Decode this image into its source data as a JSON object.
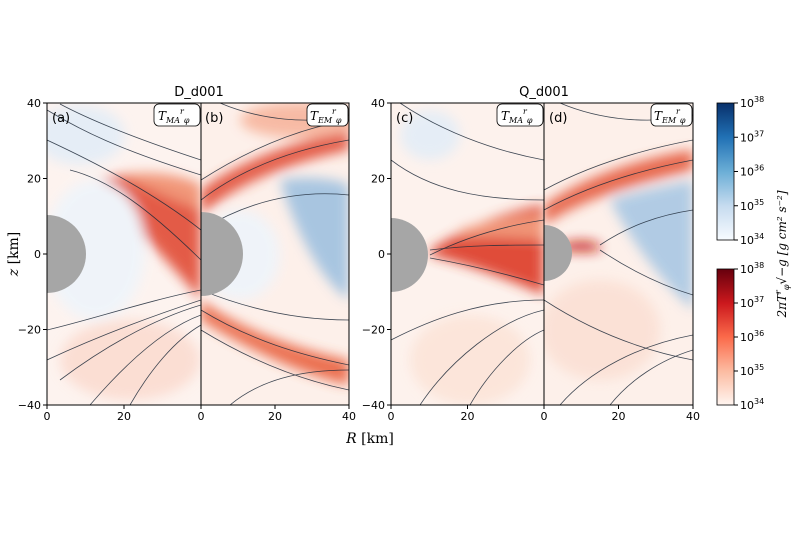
{
  "figure": {
    "titles": [
      "D_d001",
      "Q_d001"
    ],
    "xlabel": "R [km]",
    "ylabel": "z [km]",
    "colorbar_label": "2πT^r_φ√(−g) [g cm² s⁻²]",
    "colorbar_blue_ticks": [
      "10^38",
      "10^37",
      "10^36",
      "10^35",
      "10^34"
    ],
    "colorbar_red_ticks": [
      "10^38",
      "10^37",
      "10^36",
      "10^35",
      "10^34"
    ],
    "colors": {
      "positive": "#d6301f",
      "negative": "#2f6fab",
      "neutron_star": "#a6a6a6",
      "streamline": "#1f2b3a"
    }
  },
  "chart_data": [
    {
      "type": "heatmap",
      "panel": "(a)",
      "component": "T_MA^r_φ",
      "group": "D_d001",
      "x_ticks": [
        "0",
        "20"
      ],
      "y_ticks": [
        "40",
        "20",
        "0",
        "−20",
        "−40"
      ],
      "xlim": [
        0,
        40
      ],
      "ylim": [
        -40,
        40
      ],
      "color_scale": "log",
      "clim": [
        1e+34,
        1e+38
      ]
    },
    {
      "type": "heatmap",
      "panel": "(b)",
      "component": "T_EM^r_φ",
      "group": "D_d001",
      "x_ticks": [
        "0",
        "20",
        "40"
      ],
      "y_ticks": [],
      "xlim": [
        0,
        40
      ],
      "ylim": [
        -40,
        40
      ],
      "color_scale": "log",
      "clim": [
        1e+34,
        1e+38
      ]
    },
    {
      "type": "heatmap",
      "panel": "(c)",
      "component": "T_MA^r_φ",
      "group": "Q_d001",
      "x_ticks": [
        "0",
        "20"
      ],
      "y_ticks": [
        "40",
        "20",
        "0",
        "−20",
        "−40"
      ],
      "xlim": [
        0,
        40
      ],
      "ylim": [
        -40,
        40
      ],
      "color_scale": "log",
      "clim": [
        1e+34,
        1e+38
      ]
    },
    {
      "type": "heatmap",
      "panel": "(d)",
      "component": "T_EM^r_φ",
      "group": "Q_d001",
      "x_ticks": [
        "0",
        "20",
        "40"
      ],
      "y_ticks": [],
      "xlim": [
        0,
        40
      ],
      "ylim": [
        -40,
        40
      ],
      "color_scale": "log",
      "clim": [
        1e+34,
        1e+38
      ]
    }
  ]
}
